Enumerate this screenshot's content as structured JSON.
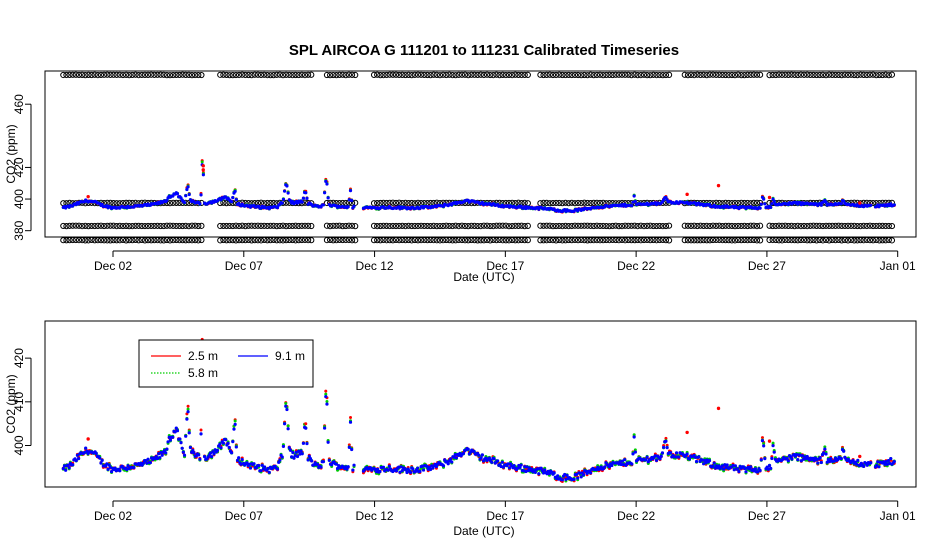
{
  "chart_data": [
    {
      "type": "scatter",
      "title": "SPL   AIRCOA  G    111201  to  111231   Calibrated Timeseries",
      "xlabel": "Date (UTC)",
      "ylabel": "CO2 (ppm)",
      "xlim": [
        -1.6,
        31.7
      ],
      "ylim": [
        376,
        481
      ],
      "x_unit": "days since Dec 01 2011 00:00 UTC",
      "xticks": [
        {
          "x": 1,
          "label": "Dec 02"
        },
        {
          "x": 6,
          "label": "Dec 07"
        },
        {
          "x": 11,
          "label": "Dec 12"
        },
        {
          "x": 16,
          "label": "Dec 17"
        },
        {
          "x": 21,
          "label": "Dec 22"
        },
        {
          "x": 26,
          "label": "Dec 27"
        },
        {
          "x": 31,
          "label": "Jan 01"
        }
      ],
      "yticks": [
        {
          "y": 380,
          "label": "380"
        },
        {
          "y": 400,
          "label": "400"
        },
        {
          "y": 420,
          "label": "420"
        },
        {
          "y": 460,
          "label": "460"
        }
      ],
      "reference_series": [
        {
          "name": "reference gas ~478 ppm",
          "marker": "open-circle",
          "color": "#000000",
          "value": 478.5
        },
        {
          "name": "reference gas ~398 ppm",
          "marker": "open-circle",
          "color": "#000000",
          "value": 397.5
        },
        {
          "name": "reference gas ~383 ppm",
          "marker": "open-circle",
          "color": "#000000",
          "value": 383.0
        },
        {
          "name": "reference gas ~374 ppm",
          "marker": "open-circle",
          "color": "#000000",
          "value": 374.0
        }
      ],
      "reference_gaps": [
        [
          4.4,
          5.0
        ],
        [
          8.6,
          9.1
        ],
        [
          10.3,
          10.9
        ],
        [
          16.9,
          17.3
        ],
        [
          22.3,
          22.8
        ],
        [
          25.8,
          26.1
        ]
      ],
      "series": [
        {
          "name": "2.5 m",
          "color": "#ff0000",
          "source": "shared_series"
        },
        {
          "name": "5.8 m",
          "color": "#00cd00",
          "source": "shared_series"
        },
        {
          "name": "9.1 m",
          "color": "#0000ff",
          "source": "shared_series"
        }
      ]
    },
    {
      "type": "scatter",
      "title": "",
      "xlabel": "Date (UTC)",
      "ylabel": "CO2 (ppm)",
      "xlim": [
        -1.6,
        31.7
      ],
      "ylim": [
        390.5,
        428.5
      ],
      "x_unit": "days since Dec 01 2011 00:00 UTC",
      "xticks": [
        {
          "x": 1,
          "label": "Dec 02"
        },
        {
          "x": 6,
          "label": "Dec 07"
        },
        {
          "x": 11,
          "label": "Dec 12"
        },
        {
          "x": 16,
          "label": "Dec 17"
        },
        {
          "x": 21,
          "label": "Dec 22"
        },
        {
          "x": 26,
          "label": "Dec 27"
        },
        {
          "x": 31,
          "label": "Jan 01"
        }
      ],
      "yticks": [
        {
          "y": 400,
          "label": "400"
        },
        {
          "y": 410,
          "label": "410"
        },
        {
          "y": 420,
          "label": "420"
        }
      ],
      "legend": {
        "placement": "top-left",
        "entries": [
          {
            "label": "2.5 m",
            "color": "#ff0000",
            "line": "solid"
          },
          {
            "label": "9.1 m",
            "color": "#0000ff",
            "line": "solid"
          },
          {
            "label": "5.8 m",
            "color": "#00cd00",
            "line": "dotted"
          }
        ]
      },
      "series": [
        {
          "name": "2.5 m",
          "color": "#ff0000",
          "source": "shared_series"
        },
        {
          "name": "5.8 m",
          "color": "#00cd00",
          "source": "shared_series"
        },
        {
          "name": "9.1 m",
          "color": "#0000ff",
          "source": "shared_series"
        }
      ]
    }
  ],
  "shared_series": {
    "anchors_9_1m": [
      [
        -0.9,
        394.5
      ],
      [
        -0.6,
        395.5
      ],
      [
        -0.3,
        397.5
      ],
      [
        0.0,
        399.0
      ],
      [
        0.3,
        398.0
      ],
      [
        0.6,
        396.0
      ],
      [
        1.0,
        394.5
      ],
      [
        1.5,
        395.0
      ],
      [
        2.0,
        395.5
      ],
      [
        2.5,
        396.5
      ],
      [
        3.0,
        398.5
      ],
      [
        3.4,
        404.0
      ],
      [
        3.7,
        398.0
      ],
      [
        4.0,
        399.0
      ],
      [
        4.3,
        397.0
      ],
      [
        4.6,
        397.5
      ],
      [
        5.0,
        399.0
      ],
      [
        5.3,
        401.5
      ],
      [
        5.6,
        397.5
      ],
      [
        6.0,
        396.0
      ],
      [
        6.5,
        395.0
      ],
      [
        7.0,
        394.5
      ],
      [
        7.3,
        395.0
      ],
      [
        7.6,
        400.0
      ],
      [
        7.9,
        397.5
      ],
      [
        8.2,
        398.5
      ],
      [
        8.5,
        397.0
      ],
      [
        8.8,
        395.0
      ],
      [
        9.2,
        396.5
      ],
      [
        9.5,
        395.5
      ],
      [
        10.0,
        395.0
      ],
      [
        10.5,
        394.8
      ],
      [
        11.0,
        394.5
      ],
      [
        11.5,
        394.8
      ],
      [
        12.0,
        394.5
      ],
      [
        12.5,
        394.5
      ],
      [
        13.0,
        394.8
      ],
      [
        13.5,
        395.5
      ],
      [
        14.0,
        397.0
      ],
      [
        14.5,
        399.0
      ],
      [
        15.0,
        397.5
      ],
      [
        15.5,
        396.5
      ],
      [
        16.0,
        395.5
      ],
      [
        16.5,
        395.0
      ],
      [
        17.0,
        394.5
      ],
      [
        17.5,
        394.0
      ],
      [
        18.0,
        393.0
      ],
      [
        18.5,
        392.5
      ],
      [
        19.0,
        393.5
      ],
      [
        19.5,
        395.0
      ],
      [
        20.0,
        395.5
      ],
      [
        20.5,
        396.0
      ],
      [
        21.0,
        396.5
      ],
      [
        21.5,
        397.0
      ],
      [
        22.0,
        397.5
      ],
      [
        22.5,
        398.0
      ],
      [
        23.0,
        397.5
      ],
      [
        23.5,
        396.5
      ],
      [
        24.0,
        395.5
      ],
      [
        24.5,
        395.0
      ],
      [
        25.0,
        394.5
      ],
      [
        25.5,
        394.5
      ],
      [
        26.0,
        395.0
      ],
      [
        26.5,
        396.5
      ],
      [
        27.0,
        397.5
      ],
      [
        27.5,
        397.0
      ],
      [
        28.0,
        396.5
      ],
      [
        28.5,
        397.0
      ],
      [
        29.0,
        396.5
      ],
      [
        29.5,
        396.0
      ],
      [
        30.0,
        395.5
      ],
      [
        30.5,
        396.0
      ],
      [
        30.9,
        396.5
      ]
    ],
    "gaps": [
      [
        10.25,
        10.55
      ],
      [
        30.0,
        30.15
      ]
    ],
    "spikes": [
      [
        3.05,
        3.3,
        402.0
      ],
      [
        3.75,
        3.95,
        409.5
      ],
      [
        4.35,
        4.5,
        428.0
      ],
      [
        5.55,
        5.75,
        406.0
      ],
      [
        7.5,
        7.75,
        410.5
      ],
      [
        8.25,
        8.45,
        405.5
      ],
      [
        9.05,
        9.25,
        414.5
      ],
      [
        10.0,
        10.15,
        405.5
      ],
      [
        20.85,
        21.0,
        401.5
      ],
      [
        22.0,
        22.25,
        402.0
      ],
      [
        25.75,
        25.95,
        402.0
      ],
      [
        26.15,
        26.35,
        400.0
      ],
      [
        28.1,
        28.3,
        399.5
      ],
      [
        28.8,
        29.0,
        399.0
      ]
    ],
    "red_outliers": [
      [
        0.05,
        401.5
      ],
      [
        4.45,
        418.5
      ],
      [
        4.45,
        421.0
      ],
      [
        22.95,
        403.0
      ],
      [
        24.15,
        408.5
      ],
      [
        26.1,
        401.0
      ],
      [
        29.55,
        397.5
      ]
    ]
  }
}
